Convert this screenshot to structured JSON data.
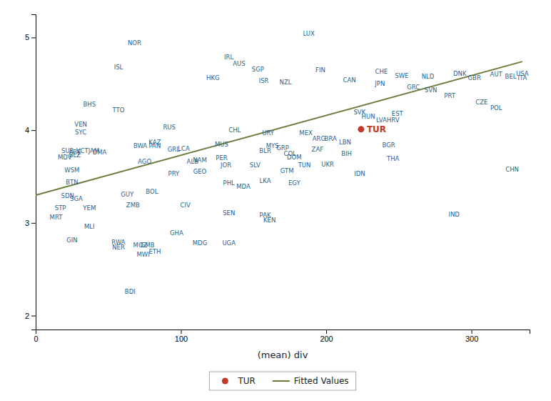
{
  "chart_data": {
    "type": "scatter",
    "xlabel": "(mean) div",
    "xlim": [
      0,
      340
    ],
    "ylim": [
      1.85,
      5.25
    ],
    "xticks": [
      0,
      100,
      200,
      300
    ],
    "yticks": [
      2,
      3,
      4,
      5
    ],
    "grid": false,
    "legend": "bottom",
    "series": [
      {
        "marker": "none",
        "color": "#1f5f8b",
        "labels": [
          "LUX",
          "NOR",
          "IRL",
          "AUS",
          "ISL",
          "SGP",
          "FIN",
          "CHE",
          "SWE",
          "NLD",
          "HKG",
          "ISR",
          "NZL",
          "CAN",
          "JPN",
          "DNK",
          "GBR",
          "GRC",
          "SVN",
          "AUT",
          "BEL",
          "USA",
          "ITA",
          "BHS",
          "TTO",
          "PRT",
          "CZE",
          "POL",
          "SVK",
          "HUN",
          "EST",
          "LVA",
          "HRV",
          "VEN",
          "SYC",
          "RUS",
          "CHL",
          "URY",
          "MEX",
          "ARG",
          "BRA",
          "KAZ",
          "BWA",
          "PAN",
          "MUS",
          "LBN",
          "BGR",
          "GRL",
          "LCA",
          "SUR",
          "ABE",
          "VCT",
          "JAM",
          "DMA",
          "BLZ",
          "MDV",
          "ZAF",
          "BIH",
          "THA",
          "BLR",
          "MYS",
          "GRP",
          "COL",
          "DOM",
          "PER",
          "NAM",
          "ALB",
          "AGO",
          "WSM",
          "PRY",
          "GEO",
          "JOR",
          "SLV",
          "TUN",
          "UKR",
          "GTM",
          "IDN",
          "CHN",
          "BTN",
          "PHL",
          "LKA",
          "MDA",
          "EGY",
          "SDN",
          "SGA",
          "GUY",
          "BOL",
          "ZMB",
          "CIV",
          "SEN",
          "PAK",
          "KEN",
          "IND",
          "STP",
          "YEM",
          "MRT",
          "MLI",
          "GHA",
          "GIN",
          "RWA",
          "NER",
          "MOZ",
          "GMB",
          "MDG",
          "UGA",
          "ETH",
          "MWI",
          "BDI"
        ],
        "x": [
          188,
          68,
          133,
          140,
          57,
          153,
          196,
          238,
          252,
          270,
          122,
          157,
          172,
          216,
          237,
          292,
          302,
          260,
          272,
          317,
          327,
          335,
          335,
          37,
          57,
          285,
          307,
          317,
          223,
          229,
          249,
          238,
          246,
          31,
          31,
          92,
          137,
          160,
          186,
          195,
          203,
          82,
          72,
          82,
          128,
          213,
          243,
          95,
          102,
          22,
          27,
          32,
          40,
          44,
          27,
          20,
          194,
          214,
          246,
          158,
          163,
          170,
          175,
          178,
          128,
          113,
          108,
          75,
          25,
          95,
          113,
          131,
          151,
          185,
          201,
          173,
          223,
          328,
          25,
          133,
          158,
          143,
          178,
          22,
          28,
          63,
          80,
          67,
          103,
          133,
          158,
          161,
          288,
          17,
          37,
          14,
          37,
          97,
          25,
          57,
          57,
          72,
          77,
          113,
          133,
          82,
          74,
          65
        ],
        "values": [
          5.04,
          4.94,
          4.79,
          4.72,
          4.68,
          4.66,
          4.65,
          4.63,
          4.59,
          4.58,
          4.56,
          4.53,
          4.52,
          4.54,
          4.5,
          4.61,
          4.56,
          4.46,
          4.43,
          4.6,
          4.58,
          4.61,
          4.56,
          4.28,
          4.22,
          4.37,
          4.3,
          4.24,
          4.19,
          4.15,
          4.18,
          4.11,
          4.11,
          4.06,
          3.98,
          4.03,
          4.0,
          3.97,
          3.97,
          3.91,
          3.91,
          3.87,
          3.83,
          3.83,
          3.85,
          3.87,
          3.84,
          3.79,
          3.8,
          3.78,
          3.76,
          3.78,
          3.78,
          3.76,
          3.73,
          3.71,
          3.79,
          3.75,
          3.69,
          3.78,
          3.83,
          3.81,
          3.75,
          3.71,
          3.7,
          3.68,
          3.66,
          3.66,
          3.57,
          3.53,
          3.55,
          3.62,
          3.62,
          3.62,
          3.63,
          3.56,
          3.53,
          3.58,
          3.44,
          3.43,
          3.45,
          3.39,
          3.43,
          3.29,
          3.26,
          3.31,
          3.34,
          3.19,
          3.19,
          3.11,
          3.08,
          3.03,
          3.09,
          3.16,
          3.16,
          3.06,
          2.96,
          2.89,
          2.81,
          2.79,
          2.74,
          2.76,
          2.76,
          2.78,
          2.78,
          2.69,
          2.66,
          2.26
        ]
      },
      {
        "name": "TUR",
        "marker": "circle",
        "color": "#c0392b",
        "labels": [
          "TUR"
        ],
        "x": [
          224
        ],
        "values": [
          4.01
        ]
      },
      {
        "name": "Fitted Values",
        "type": "line",
        "color": "#6b7c3b",
        "x": [
          0,
          335
        ],
        "values": [
          3.3,
          4.74
        ]
      }
    ]
  }
}
